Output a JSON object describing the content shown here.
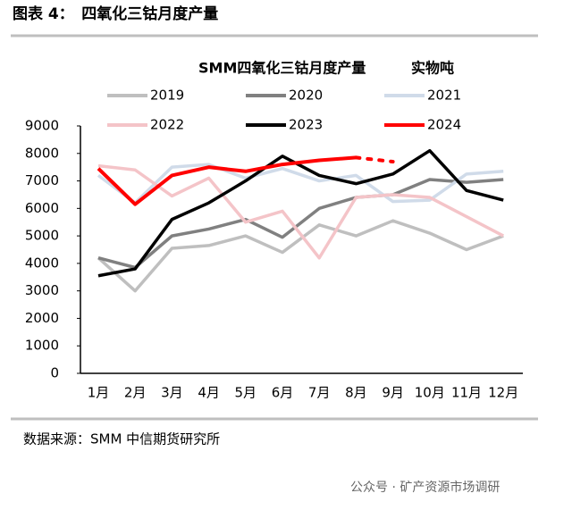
{
  "header": "图表 4：　四氧化三钴月度产量",
  "source": "数据来源：SMM 中信期货研究所",
  "watermark": "公众号 · 矿产资源市场调研",
  "chart_data": {
    "type": "line",
    "title": "SMM四氧化三钴月度产量",
    "unit": "实物吨",
    "categories": [
      "1月",
      "2月",
      "3月",
      "4月",
      "5月",
      "6月",
      "7月",
      "8月",
      "9月",
      "10月",
      "11月",
      "12月"
    ],
    "ylim": [
      0,
      9000
    ],
    "yticks": [
      0,
      1000,
      2000,
      3000,
      4000,
      5000,
      6000,
      7000,
      8000,
      9000
    ],
    "series": [
      {
        "name": "2019",
        "color": "#bfbfbf",
        "values": [
          4200,
          3000,
          4550,
          4650,
          5000,
          4400,
          5400,
          5000,
          5550,
          5100,
          4500,
          5000
        ]
      },
      {
        "name": "2020",
        "color": "#808080",
        "values": [
          4200,
          3850,
          5000,
          5250,
          5600,
          4950,
          6000,
          6400,
          6500,
          7050,
          6950,
          7050
        ]
      },
      {
        "name": "2021",
        "color": "#d0dbe9",
        "values": [
          7200,
          6200,
          7500,
          7600,
          7100,
          7450,
          7000,
          7200,
          6250,
          6300,
          7250,
          7350
        ]
      },
      {
        "name": "2022",
        "color": "#f4c4c8",
        "values": [
          7550,
          7400,
          6450,
          7100,
          5500,
          5900,
          4200,
          6400,
          6500,
          6400,
          5700,
          5000
        ]
      },
      {
        "name": "2023",
        "color": "#000000",
        "values": [
          3550,
          3800,
          5600,
          6200,
          7000,
          7900,
          7200,
          6900,
          7250,
          8100,
          6650,
          6300
        ]
      },
      {
        "name": "2024",
        "color": "#ff0000",
        "dashed_from_index": 7,
        "values": [
          7450,
          6150,
          7200,
          7500,
          7350,
          7600,
          7750,
          7850,
          7700,
          null,
          null,
          null
        ]
      }
    ]
  }
}
